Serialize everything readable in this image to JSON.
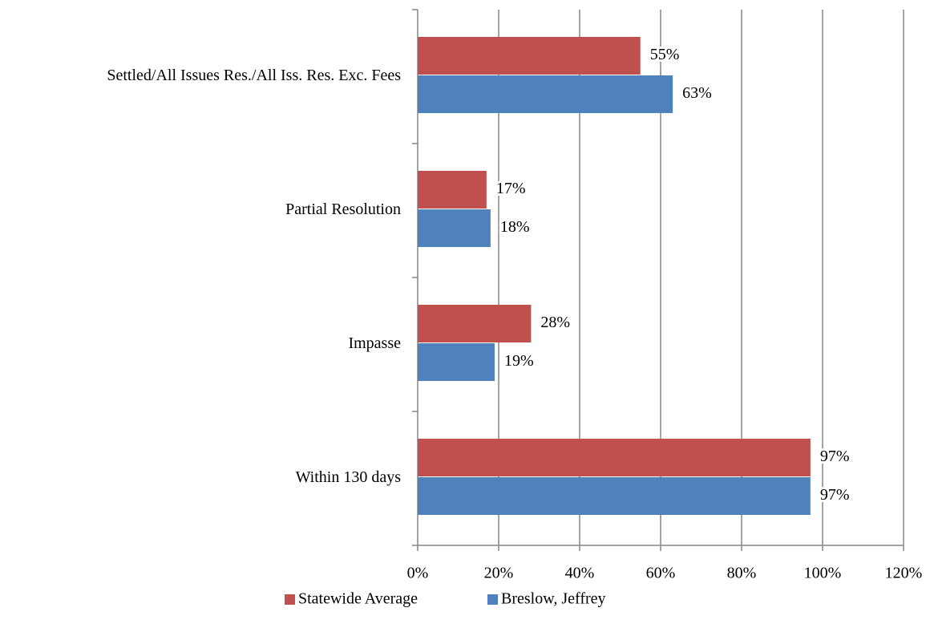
{
  "chart_data": {
    "type": "bar",
    "orientation": "horizontal",
    "categories": [
      "Settled/All Issues Res./All Iss. Res. Exc. Fees",
      "Partial Resolution",
      "Impasse",
      "Within 130 days"
    ],
    "series": [
      {
        "name": "Statewide Average",
        "color": "#c0504d",
        "values": [
          55,
          17,
          28,
          97
        ],
        "value_labels": [
          "55%",
          "17%",
          "28%",
          "97%"
        ]
      },
      {
        "name": "Breslow, Jeffrey",
        "color": "#4f81bd",
        "values": [
          63,
          18,
          19,
          97
        ],
        "value_labels": [
          "63%",
          "18%",
          "19%",
          "97%"
        ]
      }
    ],
    "xlim": [
      0,
      120
    ],
    "xticks": [
      {
        "value": 0,
        "label": "0%"
      },
      {
        "value": 20,
        "label": "20%"
      },
      {
        "value": 40,
        "label": "40%"
      },
      {
        "value": 60,
        "label": "60%"
      },
      {
        "value": 80,
        "label": "80%"
      },
      {
        "value": 100,
        "label": "100%"
      },
      {
        "value": 120,
        "label": "120%"
      }
    ],
    "grid": true,
    "legend": "bottom"
  }
}
